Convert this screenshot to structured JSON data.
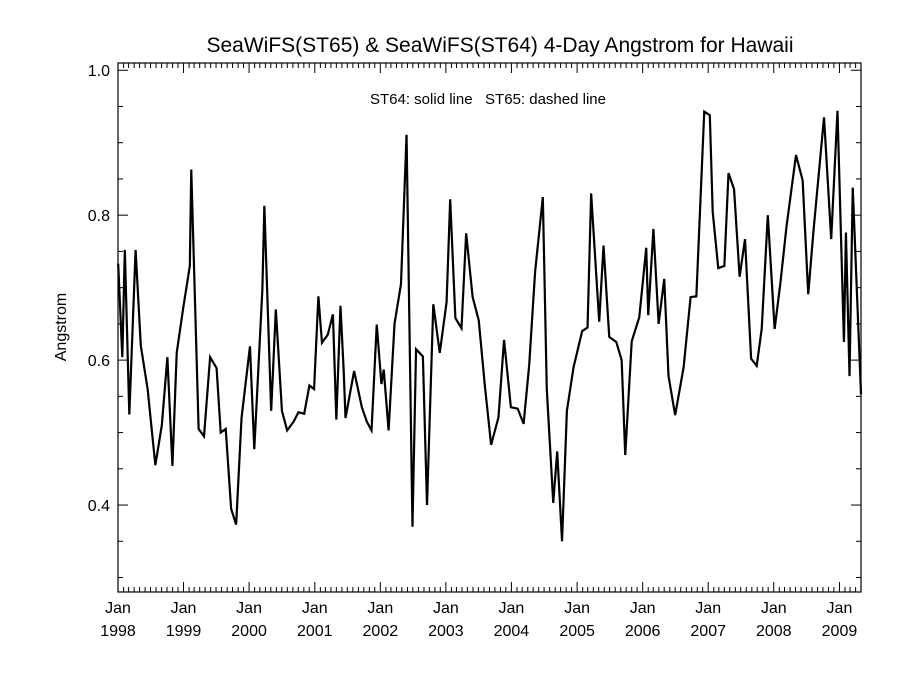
{
  "chart_data": {
    "type": "line",
    "title": "SeaWiFS(ST65) & SeaWiFS(ST64) 4-Day Angstrom for Hawaii",
    "annotation": "ST64: solid line   ST65: dashed line",
    "ylabel": "Angstrom",
    "xlabel": "",
    "xlim": [
      "1998-01-01",
      "2009-05-01"
    ],
    "ylim": [
      0.28,
      1.01
    ],
    "yticks": [
      0.4,
      0.6,
      0.8,
      1.0
    ],
    "yticklabels": [
      "0.4",
      "0.6",
      "0.8",
      "1.0"
    ],
    "xticks": [
      "1998-01-01",
      "1999-01-01",
      "2000-01-01",
      "2001-01-01",
      "2002-01-01",
      "2003-01-01",
      "2004-01-01",
      "2005-01-01",
      "2006-01-01",
      "2007-01-01",
      "2008-01-01",
      "2009-01-01"
    ],
    "xticklabels_month": [
      "Jan",
      "Jan",
      "Jan",
      "Jan",
      "Jan",
      "Jan",
      "Jan",
      "Jan",
      "Jan",
      "Jan",
      "Jan",
      "Jan"
    ],
    "xticklabels_year": [
      "1998",
      "1999",
      "2000",
      "2001",
      "2002",
      "2003",
      "2004",
      "2005",
      "2006",
      "2007",
      "2008",
      "2009"
    ],
    "grid": false,
    "series": [
      {
        "name": "ST64",
        "style": "solid",
        "color": "#000000",
        "points": [
          [
            "1998-01-02",
            0.733
          ],
          [
            "1998-01-25",
            0.604
          ],
          [
            "1998-02-08",
            0.752
          ],
          [
            "1998-03-05",
            0.525
          ],
          [
            "1998-04-09",
            0.752
          ],
          [
            "1998-05-08",
            0.62
          ],
          [
            "1998-06-15",
            0.56
          ],
          [
            "1998-07-28",
            0.455
          ],
          [
            "1998-09-02",
            0.51
          ],
          [
            "1998-10-03",
            0.604
          ],
          [
            "1998-10-31",
            0.454
          ],
          [
            "1998-11-24",
            0.61
          ],
          [
            "1998-12-29",
            0.67
          ],
          [
            "1999-02-05",
            0.73
          ],
          [
            "1999-02-13",
            0.863
          ],
          [
            "1999-03-26",
            0.505
          ],
          [
            "1999-04-25",
            0.495
          ],
          [
            "1999-05-29",
            0.604
          ],
          [
            "1999-07-04",
            0.589
          ],
          [
            "1999-07-27",
            0.5
          ],
          [
            "1999-08-24",
            0.505
          ],
          [
            "1999-09-23",
            0.395
          ],
          [
            "1999-10-21",
            0.373
          ],
          [
            "1999-11-20",
            0.52
          ],
          [
            "2000-01-06",
            0.619
          ],
          [
            "2000-01-30",
            0.477
          ],
          [
            "2000-03-15",
            0.697
          ],
          [
            "2000-03-26",
            0.813
          ],
          [
            "2000-05-03",
            0.53
          ],
          [
            "2000-05-29",
            0.67
          ],
          [
            "2000-07-02",
            0.53
          ],
          [
            "2000-07-31",
            0.503
          ],
          [
            "2000-09-05",
            0.515
          ],
          [
            "2000-10-02",
            0.528
          ],
          [
            "2000-11-03",
            0.526
          ],
          [
            "2000-12-02",
            0.565
          ],
          [
            "2000-12-28",
            0.56
          ],
          [
            "2001-01-21",
            0.688
          ],
          [
            "2001-02-10",
            0.624
          ],
          [
            "2001-03-14",
            0.635
          ],
          [
            "2001-04-12",
            0.663
          ],
          [
            "2001-05-01",
            0.518
          ],
          [
            "2001-05-24",
            0.675
          ],
          [
            "2001-06-11",
            0.585
          ],
          [
            "2001-06-21",
            0.52
          ],
          [
            "2001-08-08",
            0.585
          ],
          [
            "2001-09-20",
            0.535
          ],
          [
            "2001-10-18",
            0.515
          ],
          [
            "2001-11-13",
            0.503
          ],
          [
            "2001-12-12",
            0.649
          ],
          [
            "2002-01-07",
            0.567
          ],
          [
            "2002-01-20",
            0.587
          ],
          [
            "2002-02-16",
            0.503
          ],
          [
            "2002-03-21",
            0.65
          ],
          [
            "2002-04-26",
            0.705
          ],
          [
            "2002-05-27",
            0.911
          ],
          [
            "2002-06-29",
            0.37
          ],
          [
            "2002-07-19",
            0.615
          ],
          [
            "2002-08-26",
            0.605
          ],
          [
            "2002-09-18",
            0.4
          ],
          [
            "2002-10-23",
            0.677
          ],
          [
            "2002-11-28",
            0.61
          ],
          [
            "2003-01-05",
            0.68
          ],
          [
            "2003-01-25",
            0.822
          ],
          [
            "2003-02-23",
            0.658
          ],
          [
            "2003-03-29",
            0.644
          ],
          [
            "2003-04-24",
            0.775
          ],
          [
            "2003-05-30",
            0.687
          ],
          [
            "2003-07-03",
            0.655
          ],
          [
            "2003-08-06",
            0.565
          ],
          [
            "2003-09-10",
            0.483
          ],
          [
            "2003-10-21",
            0.521
          ],
          [
            "2003-11-21",
            0.628
          ],
          [
            "2003-12-29",
            0.535
          ],
          [
            "2004-02-05",
            0.533
          ],
          [
            "2004-03-09",
            0.512
          ],
          [
            "2004-04-09",
            0.593
          ],
          [
            "2004-05-12",
            0.722
          ],
          [
            "2004-06-24",
            0.825
          ],
          [
            "2004-07-16",
            0.56
          ],
          [
            "2004-08-21",
            0.403
          ],
          [
            "2004-09-12",
            0.474
          ],
          [
            "2004-10-09",
            0.35
          ],
          [
            "2004-11-05",
            0.53
          ],
          [
            "2004-12-12",
            0.59
          ],
          [
            "2005-01-29",
            0.64
          ],
          [
            "2005-02-28",
            0.645
          ],
          [
            "2005-03-20",
            0.83
          ],
          [
            "2005-05-04",
            0.653
          ],
          [
            "2005-05-28",
            0.758
          ],
          [
            "2005-06-29",
            0.632
          ],
          [
            "2005-08-07",
            0.625
          ],
          [
            "2005-09-06",
            0.6
          ],
          [
            "2005-09-26",
            0.469
          ],
          [
            "2005-11-01",
            0.626
          ],
          [
            "2005-12-13",
            0.659
          ],
          [
            "2006-01-21",
            0.755
          ],
          [
            "2006-02-01",
            0.662
          ],
          [
            "2006-03-02",
            0.781
          ],
          [
            "2006-03-31",
            0.65
          ],
          [
            "2006-05-01",
            0.712
          ],
          [
            "2006-05-25",
            0.578
          ],
          [
            "2006-07-01",
            0.524
          ],
          [
            "2006-08-17",
            0.59
          ],
          [
            "2006-09-25",
            0.687
          ],
          [
            "2006-10-27",
            0.688
          ],
          [
            "2006-12-10",
            0.943
          ],
          [
            "2007-01-10",
            0.938
          ],
          [
            "2007-01-26",
            0.805
          ],
          [
            "2007-02-26",
            0.727
          ],
          [
            "2007-04-01",
            0.73
          ],
          [
            "2007-04-24",
            0.858
          ],
          [
            "2007-05-25",
            0.836
          ],
          [
            "2007-06-25",
            0.715
          ],
          [
            "2007-07-25",
            0.767
          ],
          [
            "2007-08-28",
            0.602
          ],
          [
            "2007-09-28",
            0.592
          ],
          [
            "2007-10-26",
            0.643
          ],
          [
            "2007-11-29",
            0.8
          ],
          [
            "2008-01-06",
            0.643
          ],
          [
            "2008-02-07",
            0.706
          ],
          [
            "2008-03-12",
            0.784
          ],
          [
            "2008-05-04",
            0.883
          ],
          [
            "2008-06-10",
            0.848
          ],
          [
            "2008-07-11",
            0.691
          ],
          [
            "2008-08-10",
            0.78
          ],
          [
            "2008-10-07",
            0.935
          ],
          [
            "2008-11-16",
            0.767
          ],
          [
            "2008-12-21",
            0.944
          ],
          [
            "2009-01-26",
            0.625
          ],
          [
            "2009-02-06",
            0.776
          ],
          [
            "2009-02-26",
            0.578
          ],
          [
            "2009-03-16",
            0.838
          ],
          [
            "2009-05-01",
            0.553
          ]
        ]
      },
      {
        "name": "ST65",
        "style": "dashed",
        "color": "#000000",
        "points": []
      }
    ]
  }
}
